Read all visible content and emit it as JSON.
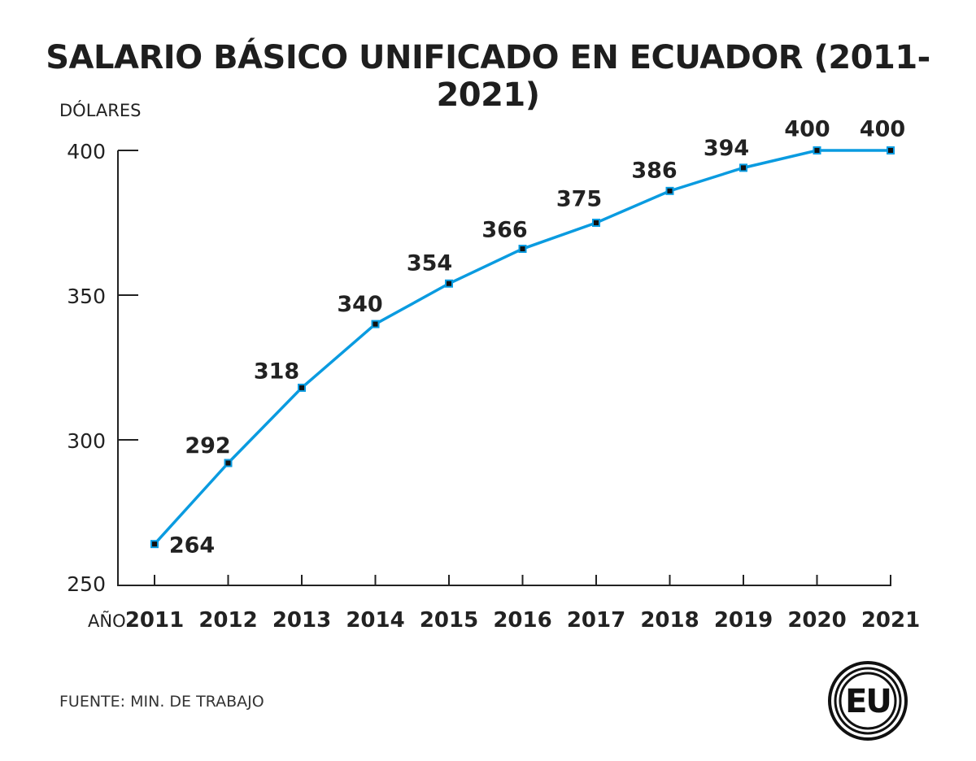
{
  "chart_data": {
    "type": "line",
    "title": "SALARIO BÁSICO UNIFICADO EN ECUADOR (2011-2021)",
    "ylabel": "DÓLARES",
    "xlabel": "AÑO",
    "categories": [
      "2011",
      "2012",
      "2013",
      "2014",
      "2015",
      "2016",
      "2017",
      "2018",
      "2019",
      "2020",
      "2021"
    ],
    "values": [
      264,
      292,
      318,
      340,
      354,
      366,
      375,
      386,
      394,
      400,
      400
    ],
    "ylim": [
      250,
      400
    ],
    "yticks": [
      250,
      300,
      350,
      400
    ],
    "grid": false,
    "line_color": "#0a9be0",
    "source": "FUENTE: MIN. DE TRABAJO"
  },
  "logo": {
    "text": "EU"
  }
}
